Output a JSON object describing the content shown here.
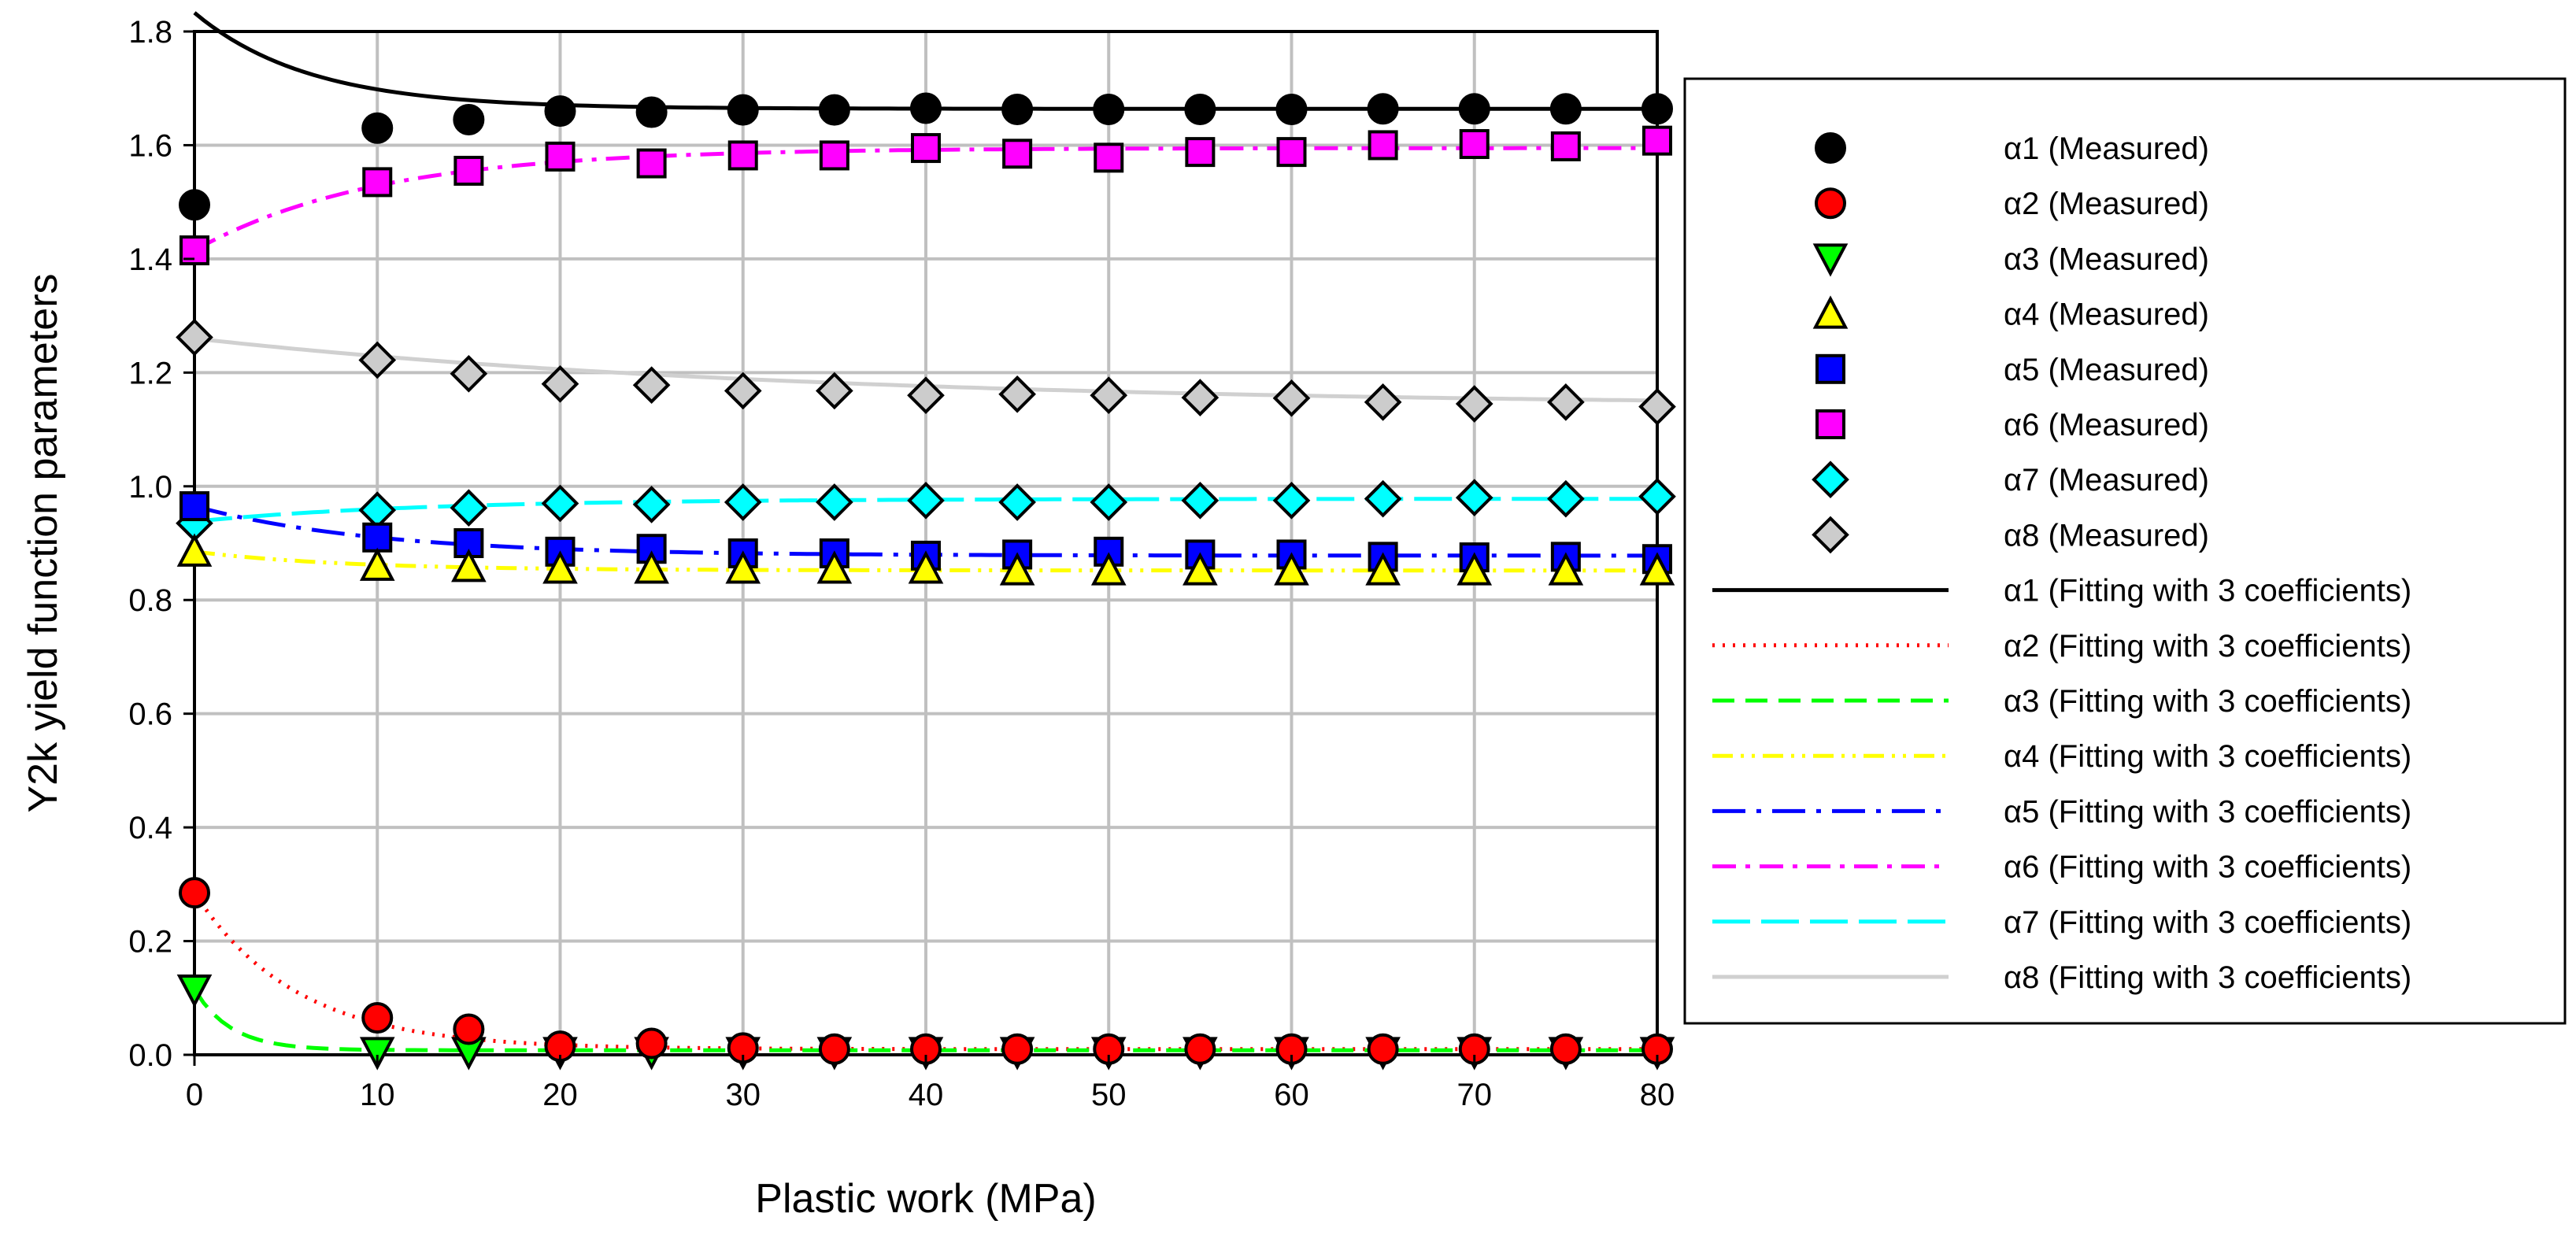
{
  "chart_data": {
    "type": "scatter",
    "title": "",
    "xlabel": "Plastic work (MPa)",
    "ylabel": "Y2k yield function parameters",
    "xlim": [
      0,
      80
    ],
    "ylim": [
      0,
      1.8
    ],
    "xticks": [
      "0",
      "10",
      "20",
      "30",
      "40",
      "50",
      "60",
      "70",
      "80"
    ],
    "yticks": [
      "0.0",
      "0.2",
      "0.4",
      "0.6",
      "0.8",
      "1.0",
      "1.2",
      "1.4",
      "1.6",
      "1.8"
    ],
    "grid": true,
    "legend_position": "right",
    "x": [
      0,
      10,
      15,
      20,
      25,
      30,
      35,
      40,
      45,
      50,
      55,
      60,
      65,
      70,
      75,
      80
    ],
    "series": [
      {
        "name": "α1 (Measured)",
        "marker": "circle",
        "color": "#000000",
        "values": [
          1.495,
          1.63,
          1.645,
          1.66,
          1.658,
          1.662,
          1.662,
          1.665,
          1.663,
          1.663,
          1.663,
          1.663,
          1.664,
          1.664,
          1.664,
          1.664
        ]
      },
      {
        "name": "α2 (Measured)",
        "marker": "circle",
        "color": "#ff0000",
        "values": [
          0.285,
          0.065,
          0.045,
          0.015,
          0.02,
          0.012,
          0.01,
          0.01,
          0.01,
          0.01,
          0.01,
          0.01,
          0.01,
          0.01,
          0.01,
          0.01
        ]
      },
      {
        "name": "α3 (Measured)",
        "marker": "triangle-down",
        "color": "#00ff00",
        "values": [
          0.115,
          0.005,
          0.005,
          0.005,
          0.005,
          0.005,
          0.005,
          0.005,
          0.005,
          0.005,
          0.005,
          0.005,
          0.005,
          0.005,
          0.005,
          0.005
        ]
      },
      {
        "name": "α4 (Measured)",
        "marker": "triangle-up",
        "color": "#ffff00",
        "values": [
          0.885,
          0.86,
          0.858,
          0.855,
          0.855,
          0.855,
          0.855,
          0.855,
          0.852,
          0.852,
          0.852,
          0.852,
          0.852,
          0.852,
          0.852,
          0.852
        ]
      },
      {
        "name": "α5 (Measured)",
        "marker": "square",
        "color": "#0000ff",
        "values": [
          0.965,
          0.91,
          0.9,
          0.885,
          0.89,
          0.882,
          0.882,
          0.878,
          0.88,
          0.885,
          0.88,
          0.88,
          0.876,
          0.875,
          0.876,
          0.872
        ]
      },
      {
        "name": "α6 (Measured)",
        "marker": "square",
        "color": "#ff00ff",
        "values": [
          1.415,
          1.535,
          1.555,
          1.58,
          1.568,
          1.582,
          1.582,
          1.595,
          1.585,
          1.578,
          1.588,
          1.588,
          1.6,
          1.602,
          1.598,
          1.608
        ]
      },
      {
        "name": "α7 (Measured)",
        "marker": "diamond",
        "color": "#00ffff",
        "values": [
          0.935,
          0.958,
          0.962,
          0.97,
          0.968,
          0.972,
          0.972,
          0.975,
          0.972,
          0.972,
          0.975,
          0.975,
          0.978,
          0.98,
          0.978,
          0.982
        ]
      },
      {
        "name": "α8 (Measured)",
        "marker": "diamond",
        "color": "#cccccc",
        "values": [
          1.262,
          1.222,
          1.198,
          1.18,
          1.178,
          1.168,
          1.168,
          1.16,
          1.162,
          1.16,
          1.156,
          1.155,
          1.148,
          1.145,
          1.148,
          1.14
        ]
      },
      {
        "name": "α1 (Fitting with 3 coefficients)",
        "line": "solid",
        "color": "#000000",
        "params": {
          "a": 1.664,
          "b": 0.169,
          "c": 0.16
        }
      },
      {
        "name": "α2 (Fitting with 3 coefficients)",
        "line": "dotted",
        "color": "#ff0000",
        "params": {
          "a": 0.01,
          "b": 0.275,
          "c": 0.18
        }
      },
      {
        "name": "α3 (Fitting with 3 coefficients)",
        "line": "dashed",
        "color": "#00ff00",
        "params": {
          "a": 0.008,
          "b": 0.107,
          "c": 0.5
        }
      },
      {
        "name": "α4 (Fitting with 3 coefficients)",
        "line": "dash-dot-dot",
        "color": "#ffff00",
        "params": {
          "a": 0.852,
          "b": 0.033,
          "c": 0.12
        }
      },
      {
        "name": "α5 (Fitting with 3 coefficients)",
        "line": "long-dash-dot",
        "color": "#0000ff",
        "params": {
          "a": 0.878,
          "b": 0.087,
          "c": 0.1
        }
      },
      {
        "name": "α6 (Fitting with 3 coefficients)",
        "line": "dash-dot",
        "color": "#ff00ff",
        "params": {
          "a": 1.595,
          "b": -0.18,
          "c": 0.1
        }
      },
      {
        "name": "α7 (Fitting with 3 coefficients)",
        "line": "long-dash",
        "color": "#00ffff",
        "params": {
          "a": 0.978,
          "b": -0.04,
          "c": 0.08
        }
      },
      {
        "name": "α8 (Fitting with 3 coefficients)",
        "line": "solid",
        "color": "#d0d0d0",
        "params": {
          "a": 1.14,
          "b": 0.12,
          "c": 0.03
        }
      }
    ]
  }
}
